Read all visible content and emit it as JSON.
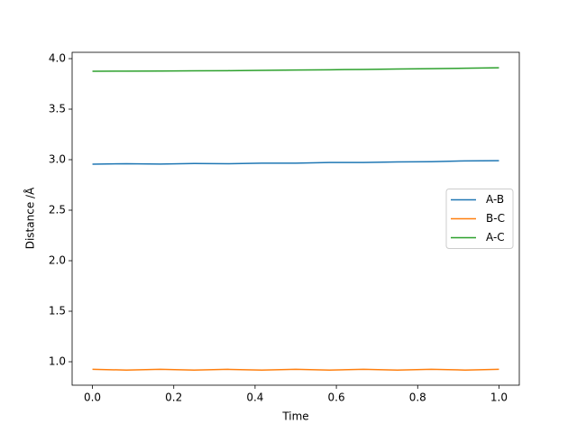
{
  "chart_data": {
    "type": "line",
    "xlabel": "Time",
    "ylabel": "Distance /Å",
    "x": [
      0,
      0.0833,
      0.1667,
      0.25,
      0.3333,
      0.4167,
      0.5,
      0.5833,
      0.6667,
      0.75,
      0.8333,
      0.9167,
      1
    ],
    "series": [
      {
        "name": "A-B",
        "color": "#1f77b4",
        "values": [
          2.955,
          2.96,
          2.957,
          2.962,
          2.96,
          2.965,
          2.965,
          2.972,
          2.972,
          2.978,
          2.98,
          2.988,
          2.99
        ]
      },
      {
        "name": "B-C",
        "color": "#ff7f0e",
        "values": [
          0.925,
          0.918,
          0.925,
          0.918,
          0.925,
          0.918,
          0.925,
          0.918,
          0.925,
          0.918,
          0.925,
          0.918,
          0.925
        ]
      },
      {
        "name": "A-C",
        "color": "#2ca02c",
        "values": [
          3.875,
          3.876,
          3.877,
          3.879,
          3.881,
          3.884,
          3.887,
          3.89,
          3.893,
          3.897,
          3.901,
          3.905,
          3.91
        ]
      }
    ],
    "xlim": [
      -0.05,
      1.05
    ],
    "ylim": [
      0.768,
      4.0625
    ],
    "xticks": [
      {
        "value": 0,
        "label": "0.0"
      },
      0.2,
      0.4,
      0.6,
      0.8,
      {
        "value": 1,
        "label": "1.0"
      }
    ],
    "yticks": [
      {
        "value": 1,
        "label": "1.0"
      },
      1.5,
      {
        "value": 2,
        "label": "2.0"
      },
      2.5,
      {
        "value": 3,
        "label": "3.0"
      },
      3.5,
      {
        "value": 4,
        "label": "4.0"
      }
    ],
    "grid": false,
    "legend": "center right"
  }
}
